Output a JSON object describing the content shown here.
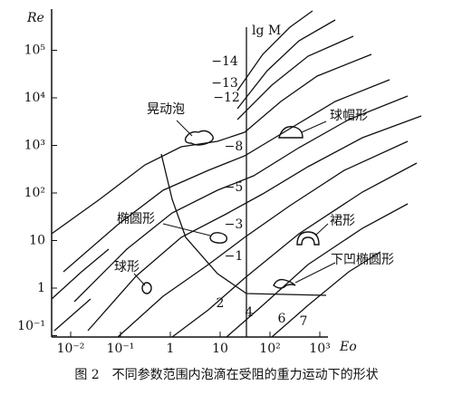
{
  "y_label": "Re",
  "x_label": "Eo",
  "yticks": [
    {
      "value": 100000,
      "label": "10⁵"
    },
    {
      "value": 10000,
      "label": "10⁴"
    },
    {
      "value": 1000,
      "label": "10³"
    },
    {
      "value": 100,
      "label": "10²"
    },
    10,
    1,
    {
      "value": 0.1,
      "label": "10⁻¹"
    }
  ],
  "xticks": [
    {
      "value": 0.01,
      "label": "10⁻²"
    },
    {
      "value": 0.1,
      "label": "10⁻¹"
    },
    1,
    10,
    {
      "value": 100,
      "label": "10²"
    },
    {
      "value": 1000,
      "label": "10³"
    }
  ],
  "lgM": {
    "title": "lg M",
    "labels": [
      "−14",
      "−13",
      "−12",
      "−8",
      "−5",
      "−3",
      "−1",
      "2",
      "4",
      "6",
      "7"
    ]
  },
  "regions": [
    "晃动泡",
    "球帽形",
    "椭圆形",
    "裙形",
    "球形",
    "下凹椭圆形"
  ],
  "caption": "图 2　不同参数范围内泡滴在受阻的重力运动下的形状"
}
